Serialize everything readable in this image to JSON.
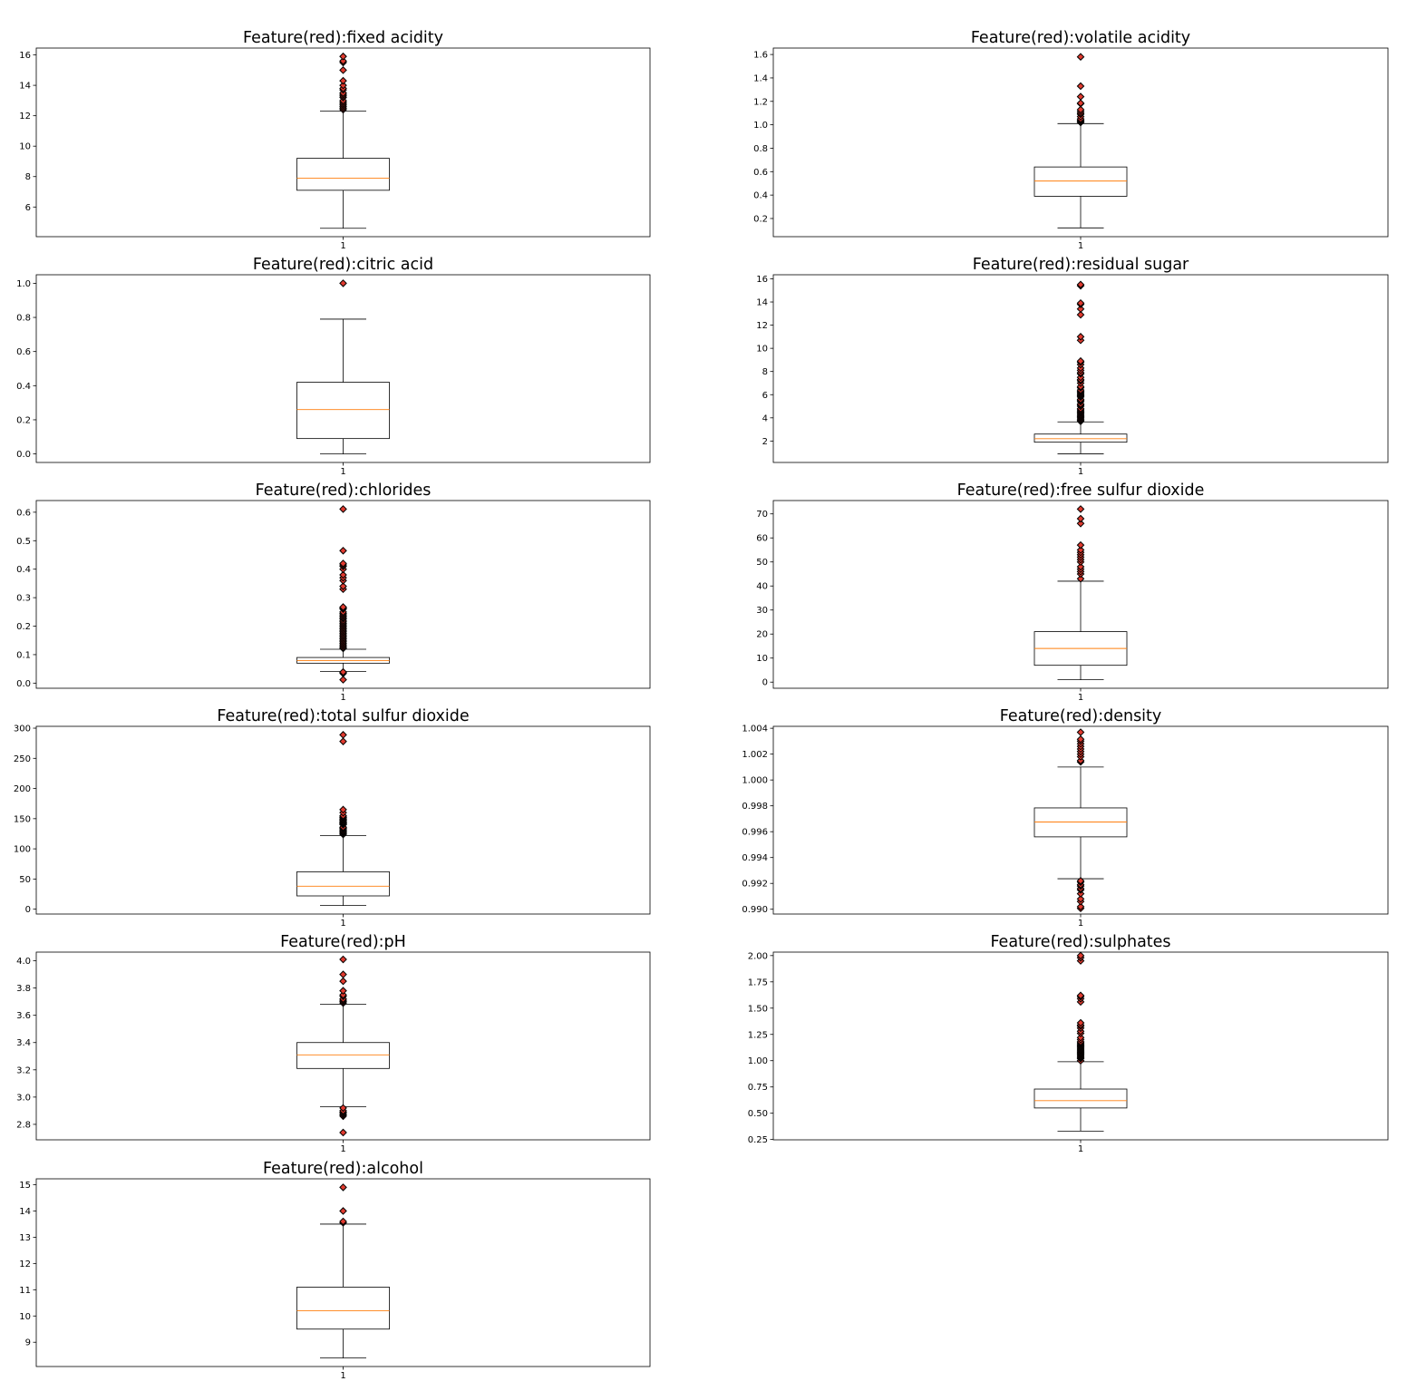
{
  "figure": {
    "label": "Boxplots of red wine features"
  },
  "colors": {
    "background": "#ffffff",
    "axis": "#000000",
    "box": "#000000",
    "median": "#ff7f0e",
    "flier_fill": "#e03a2f",
    "flier_edge": "#000000"
  },
  "chart_data": [
    {
      "type": "boxplot",
      "title": "Feature(red):fixed acidity",
      "xticks": [
        "1"
      ],
      "ylim": [
        4.05,
        16.45
      ],
      "yticks": [
        6,
        8,
        10,
        12,
        14,
        16
      ],
      "ytick_labels": [
        "6",
        "8",
        "10",
        "12",
        "14",
        "16"
      ],
      "box": {
        "whisker_low": 4.6,
        "q1": 7.1,
        "median": 7.9,
        "q3": 9.2,
        "whisker_high": 12.3
      },
      "outliers": [
        12.4,
        12.5,
        12.6,
        12.7,
        12.8,
        12.9,
        13.0,
        13.2,
        13.3,
        13.4,
        13.5,
        13.7,
        13.8,
        14.0,
        14.3,
        15.0,
        15.5,
        15.6,
        15.9
      ]
    },
    {
      "type": "boxplot",
      "title": "Feature(red):volatile acidity",
      "xticks": [
        "1"
      ],
      "ylim": [
        0.045,
        1.655
      ],
      "yticks": [
        0.2,
        0.4,
        0.6,
        0.8,
        1.0,
        1.2,
        1.4,
        1.6
      ],
      "ytick_labels": [
        "0.2",
        "0.4",
        "0.6",
        "0.8",
        "1.0",
        "1.2",
        "1.4",
        "1.6"
      ],
      "box": {
        "whisker_low": 0.12,
        "q1": 0.39,
        "median": 0.52,
        "q3": 0.64,
        "whisker_high": 1.01
      },
      "outliers": [
        1.02,
        1.025,
        1.035,
        1.04,
        1.05,
        1.07,
        1.09,
        1.1,
        1.115,
        1.13,
        1.18,
        1.185,
        1.24,
        1.33,
        1.58
      ]
    },
    {
      "type": "boxplot",
      "title": "Feature(red):citric acid",
      "xticks": [
        "1"
      ],
      "ylim": [
        -0.05,
        1.05
      ],
      "yticks": [
        0.0,
        0.2,
        0.4,
        0.6,
        0.8,
        1.0
      ],
      "ytick_labels": [
        "0.0",
        "0.2",
        "0.4",
        "0.6",
        "0.8",
        "1.0"
      ],
      "box": {
        "whisker_low": 0.0,
        "q1": 0.09,
        "median": 0.26,
        "q3": 0.42,
        "whisker_high": 0.79
      },
      "outliers": [
        1.0
      ]
    },
    {
      "type": "boxplot",
      "title": "Feature(red):residual sugar",
      "xticks": [
        "1"
      ],
      "ylim": [
        0.15,
        16.35
      ],
      "yticks": [
        2,
        4,
        6,
        8,
        10,
        12,
        14,
        16
      ],
      "ytick_labels": [
        "2",
        "4",
        "6",
        "8",
        "10",
        "12",
        "14",
        "16"
      ],
      "box": {
        "whisker_low": 0.9,
        "q1": 1.9,
        "median": 2.2,
        "q3": 2.6,
        "whisker_high": 3.65
      },
      "outliers": [
        3.7,
        3.8,
        3.9,
        4.0,
        4.1,
        4.2,
        4.3,
        4.4,
        4.5,
        4.6,
        4.7,
        4.8,
        5.0,
        5.1,
        5.2,
        5.4,
        5.5,
        5.6,
        5.8,
        5.9,
        6.0,
        6.1,
        6.2,
        6.3,
        6.4,
        6.6,
        6.7,
        7.0,
        7.2,
        7.3,
        7.5,
        7.8,
        7.9,
        8.1,
        8.3,
        8.6,
        8.8,
        8.9,
        10.7,
        11.0,
        12.9,
        13.4,
        13.8,
        13.9,
        15.4,
        15.5
      ]
    },
    {
      "type": "boxplot",
      "title": "Feature(red):chlorides",
      "xticks": [
        "1"
      ],
      "ylim": [
        -0.018,
        0.641
      ],
      "yticks": [
        0.0,
        0.1,
        0.2,
        0.3,
        0.4,
        0.5,
        0.6
      ],
      "ytick_labels": [
        "0.0",
        "0.1",
        "0.2",
        "0.3",
        "0.4",
        "0.5",
        "0.6"
      ],
      "box": {
        "whisker_low": 0.041,
        "q1": 0.07,
        "median": 0.079,
        "q3": 0.09,
        "whisker_high": 0.119
      },
      "outliers": [
        0.012,
        0.034,
        0.038,
        0.039,
        0.122,
        0.125,
        0.13,
        0.135,
        0.14,
        0.145,
        0.15,
        0.155,
        0.16,
        0.165,
        0.17,
        0.175,
        0.18,
        0.185,
        0.19,
        0.195,
        0.2,
        0.205,
        0.21,
        0.215,
        0.22,
        0.226,
        0.23,
        0.235,
        0.24,
        0.245,
        0.25,
        0.26,
        0.263,
        0.267,
        0.33,
        0.34,
        0.36,
        0.37,
        0.38,
        0.4,
        0.41,
        0.415,
        0.42,
        0.465,
        0.611
      ]
    },
    {
      "type": "boxplot",
      "title": "Feature(red):free sulfur dioxide",
      "xticks": [
        "1"
      ],
      "ylim": [
        -2.55,
        75.55
      ],
      "yticks": [
        0,
        10,
        20,
        30,
        40,
        50,
        60,
        70
      ],
      "ytick_labels": [
        "0",
        "10",
        "20",
        "30",
        "40",
        "50",
        "60",
        "70"
      ],
      "box": {
        "whisker_low": 1,
        "q1": 7,
        "median": 14,
        "q3": 21,
        "whisker_high": 42
      },
      "outliers": [
        43,
        45,
        46,
        47,
        48,
        50,
        51,
        52,
        53,
        54,
        55,
        57,
        66,
        68,
        72
      ]
    },
    {
      "type": "boxplot",
      "title": "Feature(red):total sulfur dioxide",
      "xticks": [
        "1"
      ],
      "ylim": [
        -8.05,
        303.05
      ],
      "yticks": [
        0,
        50,
        100,
        150,
        200,
        250,
        300
      ],
      "ytick_labels": [
        "0",
        "50",
        "100",
        "150",
        "200",
        "250",
        "300"
      ],
      "box": {
        "whisker_low": 6,
        "q1": 22,
        "median": 38,
        "q3": 62,
        "whisker_high": 122
      },
      "outliers": [
        124,
        125,
        127,
        128,
        129,
        131,
        133,
        134,
        135,
        136,
        140,
        141,
        142,
        143,
        144,
        145,
        147,
        148,
        149,
        151,
        152,
        153,
        155,
        160,
        165,
        278,
        289
      ]
    },
    {
      "type": "boxplot",
      "title": "Feature(red):density",
      "xticks": [
        "1"
      ],
      "ylim": [
        0.98963,
        1.00415
      ],
      "yticks": [
        0.99,
        0.992,
        0.994,
        0.996,
        0.998,
        1.0,
        1.002,
        1.004
      ],
      "ytick_labels": [
        "0.990",
        "0.992",
        "0.994",
        "0.996",
        "0.998",
        "1.000",
        "1.002",
        "1.004"
      ],
      "box": {
        "whisker_low": 0.99236,
        "q1": 0.9956,
        "median": 0.99675,
        "q3": 0.99784,
        "whisker_high": 1.001
      },
      "outliers": [
        0.99007,
        0.9902,
        0.9906,
        0.9908,
        0.9912,
        0.9915,
        0.9916,
        0.9918,
        0.9919,
        0.9921,
        0.9922,
        1.0014,
        1.0015,
        1.0018,
        1.002,
        1.0022,
        1.0024,
        1.0026,
        1.0028,
        1.003,
        1.00315,
        1.00369
      ]
    },
    {
      "type": "boxplot",
      "title": "Feature(red):pH",
      "xticks": [
        "1"
      ],
      "ylim": [
        2.6865,
        4.0635
      ],
      "yticks": [
        2.8,
        3.0,
        3.2,
        3.4,
        3.6,
        3.8,
        4.0
      ],
      "ytick_labels": [
        "2.8",
        "3.0",
        "3.2",
        "3.4",
        "3.6",
        "3.8",
        "4.0"
      ],
      "box": {
        "whisker_low": 2.93,
        "q1": 3.21,
        "median": 3.31,
        "q3": 3.4,
        "whisker_high": 3.68
      },
      "outliers": [
        2.74,
        2.86,
        2.87,
        2.88,
        2.89,
        2.9,
        2.92,
        3.69,
        3.7,
        3.71,
        3.72,
        3.74,
        3.75,
        3.78,
        3.85,
        3.9,
        4.01
      ]
    },
    {
      "type": "boxplot",
      "title": "Feature(red):sulphates",
      "xticks": [
        "1"
      ],
      "ylim": [
        0.247,
        2.033
      ],
      "yticks": [
        0.25,
        0.5,
        0.75,
        1.0,
        1.25,
        1.5,
        1.75,
        2.0
      ],
      "ytick_labels": [
        "0.25",
        "0.50",
        "0.75",
        "1.00",
        "1.25",
        "1.50",
        "1.75",
        "2.00"
      ],
      "box": {
        "whisker_low": 0.33,
        "q1": 0.55,
        "median": 0.62,
        "q3": 0.73,
        "whisker_high": 0.99
      },
      "outliers": [
        1.0,
        1.02,
        1.03,
        1.04,
        1.05,
        1.06,
        1.07,
        1.08,
        1.09,
        1.1,
        1.11,
        1.12,
        1.13,
        1.14,
        1.15,
        1.16,
        1.17,
        1.18,
        1.2,
        1.22,
        1.26,
        1.28,
        1.31,
        1.33,
        1.34,
        1.36,
        1.56,
        1.59,
        1.61,
        1.62,
        1.95,
        1.98,
        2.0
      ]
    },
    {
      "type": "boxplot",
      "title": "Feature(red):alcohol",
      "xticks": [
        "1"
      ],
      "ylim": [
        8.075,
        15.225
      ],
      "yticks": [
        9,
        10,
        11,
        12,
        13,
        14,
        15
      ],
      "ytick_labels": [
        "9",
        "10",
        "11",
        "12",
        "13",
        "14",
        "15"
      ],
      "box": {
        "whisker_low": 8.4,
        "q1": 9.5,
        "median": 10.2,
        "q3": 11.1,
        "whisker_high": 13.5
      },
      "outliers": [
        13.55,
        13.6,
        14.0,
        14.9
      ]
    }
  ]
}
